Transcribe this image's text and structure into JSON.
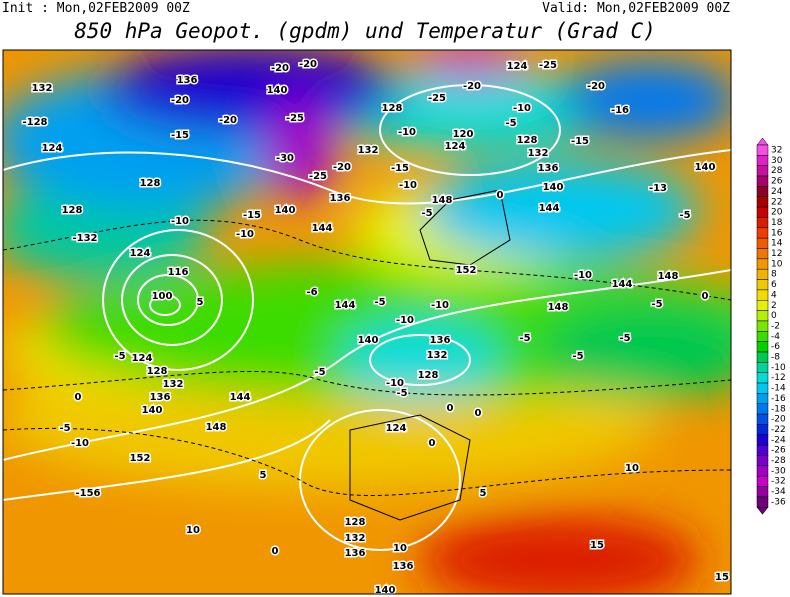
{
  "header": {
    "init": "Init : Mon,02FEB2009 00Z",
    "valid": "Valid: Mon,02FEB2009 00Z",
    "title": "850 hPa Geopot. (gpdm) und Temperatur (Grad C)"
  },
  "colorbar": {
    "labels": [
      32,
      30,
      28,
      26,
      24,
      22,
      20,
      18,
      16,
      14,
      12,
      10,
      8,
      6,
      4,
      2,
      0,
      -2,
      -4,
      -6,
      -8,
      -10,
      -12,
      -14,
      -16,
      -18,
      -20,
      -22,
      -24,
      -26,
      -28,
      -30,
      -32,
      -34,
      -36
    ],
    "colors": [
      "#f550e6",
      "#e020c8",
      "#c8109e",
      "#a8006e",
      "#8c0028",
      "#a80000",
      "#c80000",
      "#dc1e00",
      "#f03c00",
      "#f05a00",
      "#f07800",
      "#f09600",
      "#f0b400",
      "#f0c800",
      "#f0dc00",
      "#e6f000",
      "#b4f000",
      "#78e600",
      "#3cdc00",
      "#00d200",
      "#00c850",
      "#00d2a0",
      "#00dcdc",
      "#00c8f0",
      "#00a0f0",
      "#0078f0",
      "#0050e6",
      "#0028dc",
      "#1e00d2",
      "#5000d2",
      "#7800c8",
      "#a000c8",
      "#c800c8",
      "#9600a0",
      "#6e0078"
    ]
  },
  "map": {
    "contour_labels": [
      "132",
      "-128",
      "124",
      "128",
      "128",
      "-132",
      "136",
      "-20",
      "-15",
      "-20",
      "140",
      "-20",
      "-20",
      "-25",
      "-30",
      "-25",
      "-20",
      "-15",
      "140",
      "136",
      "132",
      "128",
      "-15",
      "-10",
      "-10",
      "120",
      "124",
      "-10",
      "-5",
      "128",
      "132",
      "136",
      "140",
      "144",
      "-25",
      "-20",
      "124",
      "-25",
      "-20",
      "-16",
      "-15",
      "-13",
      "140",
      "-5",
      "148",
      "-5",
      "0",
      "152",
      "-10",
      "144",
      "148",
      "-5",
      "0",
      "-5",
      "-5",
      "-5",
      "148",
      "-10",
      "144",
      "-5",
      "-10",
      "136",
      "132",
      "140",
      "128",
      "-10",
      "-5",
      "0",
      "0",
      "124",
      "-6",
      "-10",
      "-10",
      "144",
      "124",
      "116",
      "100",
      "5",
      "-5",
      "124",
      "128",
      "132",
      "136",
      "140",
      "144",
      "148",
      "0",
      "-5",
      "-10",
      "152",
      "-156",
      "10",
      "5",
      "0",
      "128",
      "132",
      "136",
      "136",
      "10",
      "140",
      "10",
      "15",
      "15",
      "5",
      "-5",
      "0"
    ]
  }
}
